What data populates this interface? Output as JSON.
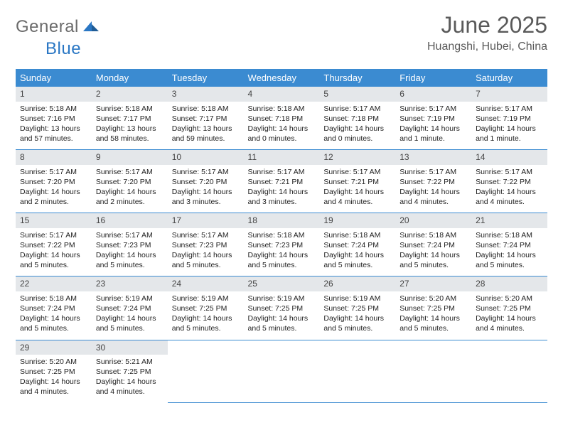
{
  "brand": {
    "word1": "General",
    "word2": "Blue"
  },
  "colors": {
    "header_bg": "#3b8bd1",
    "header_text": "#ffffff",
    "daynum_bg": "#e4e7ea",
    "rule": "#3b8bd1",
    "title": "#5a5a5a",
    "logo_gray": "#6b6b6b",
    "logo_blue": "#2a77c4"
  },
  "typography": {
    "title_fontsize": 32,
    "subtitle_fontsize": 16,
    "weekday_fontsize": 13,
    "daynum_fontsize": 12,
    "body_fontsize": 10.5
  },
  "title": "June 2025",
  "location": "Huangshi, Hubei, China",
  "weekdays": [
    "Sunday",
    "Monday",
    "Tuesday",
    "Wednesday",
    "Thursday",
    "Friday",
    "Saturday"
  ],
  "days": [
    {
      "n": "1",
      "sr": "5:18 AM",
      "ss": "7:16 PM",
      "dl": "13 hours and 57 minutes."
    },
    {
      "n": "2",
      "sr": "5:18 AM",
      "ss": "7:17 PM",
      "dl": "13 hours and 58 minutes."
    },
    {
      "n": "3",
      "sr": "5:18 AM",
      "ss": "7:17 PM",
      "dl": "13 hours and 59 minutes."
    },
    {
      "n": "4",
      "sr": "5:18 AM",
      "ss": "7:18 PM",
      "dl": "14 hours and 0 minutes."
    },
    {
      "n": "5",
      "sr": "5:17 AM",
      "ss": "7:18 PM",
      "dl": "14 hours and 0 minutes."
    },
    {
      "n": "6",
      "sr": "5:17 AM",
      "ss": "7:19 PM",
      "dl": "14 hours and 1 minute."
    },
    {
      "n": "7",
      "sr": "5:17 AM",
      "ss": "7:19 PM",
      "dl": "14 hours and 1 minute."
    },
    {
      "n": "8",
      "sr": "5:17 AM",
      "ss": "7:20 PM",
      "dl": "14 hours and 2 minutes."
    },
    {
      "n": "9",
      "sr": "5:17 AM",
      "ss": "7:20 PM",
      "dl": "14 hours and 2 minutes."
    },
    {
      "n": "10",
      "sr": "5:17 AM",
      "ss": "7:20 PM",
      "dl": "14 hours and 3 minutes."
    },
    {
      "n": "11",
      "sr": "5:17 AM",
      "ss": "7:21 PM",
      "dl": "14 hours and 3 minutes."
    },
    {
      "n": "12",
      "sr": "5:17 AM",
      "ss": "7:21 PM",
      "dl": "14 hours and 4 minutes."
    },
    {
      "n": "13",
      "sr": "5:17 AM",
      "ss": "7:22 PM",
      "dl": "14 hours and 4 minutes."
    },
    {
      "n": "14",
      "sr": "5:17 AM",
      "ss": "7:22 PM",
      "dl": "14 hours and 4 minutes."
    },
    {
      "n": "15",
      "sr": "5:17 AM",
      "ss": "7:22 PM",
      "dl": "14 hours and 5 minutes."
    },
    {
      "n": "16",
      "sr": "5:17 AM",
      "ss": "7:23 PM",
      "dl": "14 hours and 5 minutes."
    },
    {
      "n": "17",
      "sr": "5:17 AM",
      "ss": "7:23 PM",
      "dl": "14 hours and 5 minutes."
    },
    {
      "n": "18",
      "sr": "5:18 AM",
      "ss": "7:23 PM",
      "dl": "14 hours and 5 minutes."
    },
    {
      "n": "19",
      "sr": "5:18 AM",
      "ss": "7:24 PM",
      "dl": "14 hours and 5 minutes."
    },
    {
      "n": "20",
      "sr": "5:18 AM",
      "ss": "7:24 PM",
      "dl": "14 hours and 5 minutes."
    },
    {
      "n": "21",
      "sr": "5:18 AM",
      "ss": "7:24 PM",
      "dl": "14 hours and 5 minutes."
    },
    {
      "n": "22",
      "sr": "5:18 AM",
      "ss": "7:24 PM",
      "dl": "14 hours and 5 minutes."
    },
    {
      "n": "23",
      "sr": "5:19 AM",
      "ss": "7:24 PM",
      "dl": "14 hours and 5 minutes."
    },
    {
      "n": "24",
      "sr": "5:19 AM",
      "ss": "7:25 PM",
      "dl": "14 hours and 5 minutes."
    },
    {
      "n": "25",
      "sr": "5:19 AM",
      "ss": "7:25 PM",
      "dl": "14 hours and 5 minutes."
    },
    {
      "n": "26",
      "sr": "5:19 AM",
      "ss": "7:25 PM",
      "dl": "14 hours and 5 minutes."
    },
    {
      "n": "27",
      "sr": "5:20 AM",
      "ss": "7:25 PM",
      "dl": "14 hours and 5 minutes."
    },
    {
      "n": "28",
      "sr": "5:20 AM",
      "ss": "7:25 PM",
      "dl": "14 hours and 4 minutes."
    },
    {
      "n": "29",
      "sr": "5:20 AM",
      "ss": "7:25 PM",
      "dl": "14 hours and 4 minutes."
    },
    {
      "n": "30",
      "sr": "5:21 AM",
      "ss": "7:25 PM",
      "dl": "14 hours and 4 minutes."
    }
  ],
  "labels": {
    "sunrise": "Sunrise:",
    "sunset": "Sunset:",
    "daylight": "Daylight:"
  },
  "layout": {
    "start_weekday": 0,
    "total_cells": 35
  }
}
